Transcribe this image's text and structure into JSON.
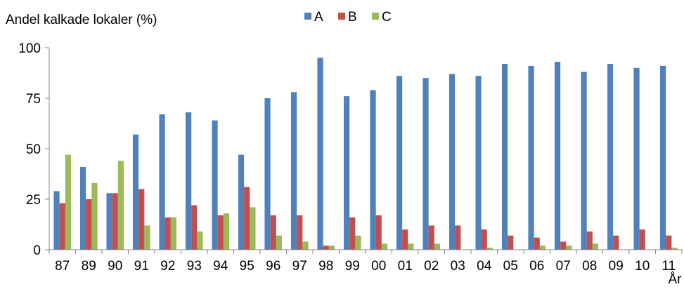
{
  "chart_data": {
    "type": "bar",
    "title": "",
    "ylabel": "Andel kalkade lokaler (%)",
    "xlabel": "År",
    "ylim": [
      0,
      100
    ],
    "yticks": [
      0,
      25,
      50,
      75,
      100
    ],
    "grid": false,
    "legend_position": "top",
    "categories": [
      "87",
      "89",
      "90",
      "91",
      "92",
      "93",
      "94",
      "95",
      "96",
      "97",
      "98",
      "99",
      "00",
      "01",
      "02",
      "03",
      "04",
      "05",
      "06",
      "07",
      "08",
      "09",
      "10",
      "11"
    ],
    "series": [
      {
        "name": "A",
        "color": "#4F81BD",
        "values": [
          29,
          41,
          28,
          57,
          67,
          68,
          64,
          47,
          75,
          78,
          95,
          76,
          79,
          86,
          85,
          87,
          86,
          92,
          91,
          93,
          88,
          92,
          90,
          91
        ]
      },
      {
        "name": "B",
        "color": "#C0504D",
        "values": [
          23,
          25,
          28,
          30,
          16,
          22,
          17,
          31,
          17,
          17,
          2,
          16,
          17,
          10,
          12,
          12,
          10,
          7,
          6,
          4,
          9,
          7,
          10,
          7
        ]
      },
      {
        "name": "C",
        "color": "#9BBB59",
        "values": [
          47,
          33,
          44,
          12,
          16,
          9,
          18,
          21,
          7,
          4,
          2,
          7,
          3,
          3,
          3,
          0,
          1,
          0,
          2,
          2,
          3,
          0,
          0,
          1
        ]
      }
    ]
  }
}
